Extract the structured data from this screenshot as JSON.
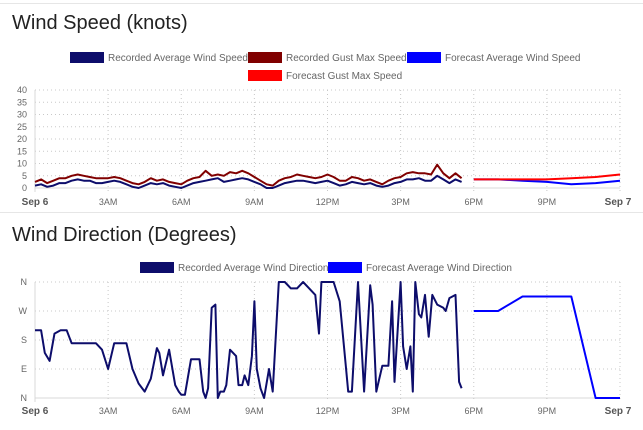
{
  "chart_data": [
    {
      "type": "line",
      "title": "Wind Speed (knots)",
      "legend": [
        "Recorded Average Wind Speed",
        "Recorded Gust Max Speed",
        "Forecast Average Wind Speed",
        "Forecast Gust Max Speed"
      ],
      "legend_placement": "top",
      "ylim": [
        0,
        40
      ],
      "y_ticks": [
        "0",
        "5",
        "10",
        "15",
        "20",
        "25",
        "30",
        "35",
        "40"
      ],
      "x_ticks": [
        {
          "label": "Sep 6",
          "hour": 0,
          "bold": true
        },
        {
          "label": "3AM",
          "hour": 3,
          "bold": false
        },
        {
          "label": "6AM",
          "hour": 6,
          "bold": false
        },
        {
          "label": "9AM",
          "hour": 9,
          "bold": false
        },
        {
          "label": "12PM",
          "hour": 12,
          "bold": false
        },
        {
          "label": "3PM",
          "hour": 15,
          "bold": false
        },
        {
          "label": "6PM",
          "hour": 18,
          "bold": false
        },
        {
          "label": "9PM",
          "hour": 21,
          "bold": false
        },
        {
          "label": "Sep 7",
          "hour": 24,
          "bold": true
        }
      ],
      "xlim_hours": [
        0,
        24
      ],
      "grid": true,
      "series": [
        {
          "name": "Recorded Average Wind Speed",
          "color": "#0d0d6b",
          "x": [
            0,
            0.25,
            0.5,
            0.75,
            1,
            1.25,
            1.5,
            1.75,
            2,
            2.25,
            2.5,
            2.75,
            3,
            3.25,
            3.5,
            3.75,
            4,
            4.25,
            4.5,
            4.75,
            5,
            5.25,
            5.5,
            5.75,
            6,
            6.25,
            6.5,
            6.75,
            7,
            7.25,
            7.5,
            7.75,
            8,
            8.25,
            8.5,
            8.75,
            9,
            9.25,
            9.5,
            9.75,
            10,
            10.25,
            10.5,
            10.75,
            11,
            11.25,
            11.5,
            11.75,
            12,
            12.25,
            12.5,
            12.75,
            13,
            13.25,
            13.5,
            13.75,
            14,
            14.25,
            14.5,
            14.75,
            15,
            15.25,
            15.5,
            15.75,
            16,
            16.25,
            16.5,
            16.75,
            17,
            17.25,
            17.5
          ],
          "y": [
            1,
            1.5,
            0.5,
            1,
            2,
            2,
            3,
            3.5,
            3,
            3,
            2,
            2,
            2.5,
            3,
            2.5,
            1.5,
            0.5,
            0,
            1,
            2,
            1.5,
            2,
            1,
            0.5,
            0,
            1,
            2,
            2.5,
            3,
            3.5,
            4,
            2.5,
            3,
            3.5,
            4,
            3.5,
            2.5,
            1.5,
            0,
            0,
            1,
            2,
            2.5,
            3,
            3,
            2.5,
            2,
            2.5,
            3,
            2,
            1,
            1.5,
            2.5,
            2,
            1.5,
            2,
            1,
            0.5,
            1,
            2,
            2.5,
            3.5,
            3.5,
            4,
            3,
            3,
            5,
            3.5,
            2,
            3.5,
            2.5
          ]
        },
        {
          "name": "Recorded Gust Max Speed",
          "color": "#800000",
          "x": [
            0,
            0.25,
            0.5,
            0.75,
            1,
            1.25,
            1.5,
            1.75,
            2,
            2.25,
            2.5,
            2.75,
            3,
            3.25,
            3.5,
            3.75,
            4,
            4.25,
            4.5,
            4.75,
            5,
            5.25,
            5.5,
            5.75,
            6,
            6.25,
            6.5,
            6.75,
            7,
            7.25,
            7.5,
            7.75,
            8,
            8.25,
            8.5,
            8.75,
            9,
            9.25,
            9.5,
            9.75,
            10,
            10.25,
            10.5,
            10.75,
            11,
            11.25,
            11.5,
            11.75,
            12,
            12.25,
            12.5,
            12.75,
            13,
            13.25,
            13.5,
            13.75,
            14,
            14.25,
            14.5,
            14.75,
            15,
            15.25,
            15.5,
            15.75,
            16,
            16.25,
            16.5,
            16.75,
            17,
            17.25,
            17.5
          ],
          "y": [
            2.5,
            3.5,
            2,
            3,
            4,
            4,
            5,
            5.5,
            5,
            4.5,
            4,
            4,
            4,
            4.5,
            4,
            3,
            2,
            1.5,
            2.5,
            4,
            3,
            3.5,
            2.5,
            2,
            1.5,
            3,
            4,
            4.5,
            7,
            5,
            5.5,
            5,
            6.5,
            6,
            7,
            6,
            4.5,
            3,
            1.5,
            1,
            3,
            4,
            4.5,
            5.5,
            5,
            4.5,
            4,
            4.5,
            5.5,
            4.5,
            3,
            3,
            4.5,
            4,
            3,
            3.5,
            2.5,
            1.5,
            3,
            4,
            4.5,
            6,
            6.5,
            6,
            6,
            5.5,
            9.5,
            6,
            4,
            6,
            4
          ]
        },
        {
          "name": "Forecast Average Wind Speed",
          "color": "#0000ff",
          "x": [
            18,
            19,
            20,
            21,
            22,
            23,
            24
          ],
          "y": [
            3.5,
            3.5,
            3,
            2.5,
            1.5,
            2,
            3
          ]
        },
        {
          "name": "Forecast Gust Max Speed",
          "color": "#ff0000",
          "x": [
            18,
            19,
            20,
            21,
            22,
            23,
            24
          ],
          "y": [
            3.5,
            3.5,
            3.5,
            3.5,
            4,
            4.5,
            5.5
          ]
        }
      ]
    },
    {
      "type": "line",
      "title": "Wind Direction (Degrees)",
      "legend": [
        "Recorded Average Wind Direction",
        "Forecast Average Wind Direction"
      ],
      "legend_placement": "top",
      "ylim": [
        0,
        360
      ],
      "y_ticks": [
        "N",
        "E",
        "S",
        "W",
        "N"
      ],
      "x_ticks": [
        {
          "label": "Sep 6",
          "hour": 0,
          "bold": true
        },
        {
          "label": "3AM",
          "hour": 3,
          "bold": false
        },
        {
          "label": "6AM",
          "hour": 6,
          "bold": false
        },
        {
          "label": "9AM",
          "hour": 9,
          "bold": false
        },
        {
          "label": "12PM",
          "hour": 12,
          "bold": false
        },
        {
          "label": "3PM",
          "hour": 15,
          "bold": false
        },
        {
          "label": "6PM",
          "hour": 18,
          "bold": false
        },
        {
          "label": "9PM",
          "hour": 21,
          "bold": false
        },
        {
          "label": "Sep 7",
          "hour": 24,
          "bold": true
        }
      ],
      "xlim_hours": [
        0,
        24
      ],
      "grid": true,
      "series": [
        {
          "name": "Recorded Average Wind Direction",
          "color": "#0d0d6b",
          "x": [
            0,
            0.25,
            0.4,
            0.6,
            0.8,
            1.05,
            1.3,
            1.5,
            1.75,
            2,
            2.5,
            2.75,
            3,
            3.25,
            3.5,
            3.75,
            4,
            4.25,
            4.5,
            4.75,
            5,
            5.1,
            5.25,
            5.5,
            5.75,
            5.9,
            6,
            6.15,
            6.4,
            6.75,
            6.9,
            7,
            7.1,
            7.25,
            7.4,
            7.5,
            7.6,
            7.75,
            7.85,
            8,
            8.25,
            8.35,
            8.5,
            8.6,
            8.75,
            8.9,
            9,
            9.1,
            9.25,
            9.4,
            9.6,
            9.75,
            10,
            10.25,
            10.5,
            10.75,
            11,
            11.25,
            11.5,
            11.65,
            11.75,
            12,
            12.25,
            12.5,
            12.75,
            12.85,
            13,
            13.25,
            13.5,
            13.75,
            13.85,
            14,
            14.25,
            14.5,
            14.65,
            14.75,
            15,
            15.1,
            15.25,
            15.4,
            15.5,
            15.6,
            15.75,
            15.85,
            16,
            16.15,
            16.3,
            16.5,
            16.75,
            16.85,
            17,
            17.25,
            17.4,
            17.5
          ],
          "y": [
            210,
            210,
            140,
            115,
            200,
            210,
            210,
            170,
            170,
            170,
            170,
            150,
            90,
            170,
            170,
            170,
            90,
            45,
            20,
            60,
            155,
            140,
            70,
            150,
            40,
            20,
            10,
            10,
            120,
            120,
            20,
            0,
            30,
            280,
            290,
            0,
            20,
            20,
            40,
            150,
            130,
            40,
            40,
            70,
            40,
            130,
            300,
            90,
            30,
            0,
            90,
            20,
            360,
            360,
            340,
            340,
            360,
            340,
            320,
            200,
            360,
            360,
            360,
            300,
            100,
            20,
            20,
            360,
            20,
            350,
            290,
            20,
            100,
            100,
            300,
            50,
            360,
            160,
            90,
            160,
            20,
            360,
            260,
            250,
            320,
            190,
            320,
            290,
            280,
            270,
            310,
            320,
            50,
            30
          ]
        },
        {
          "name": "Forecast Average Wind Direction",
          "color": "#0000ff",
          "x": [
            18,
            19,
            20,
            21,
            22,
            23,
            24
          ],
          "y": [
            270,
            270,
            315,
            315,
            315,
            0,
            0
          ]
        }
      ]
    }
  ]
}
